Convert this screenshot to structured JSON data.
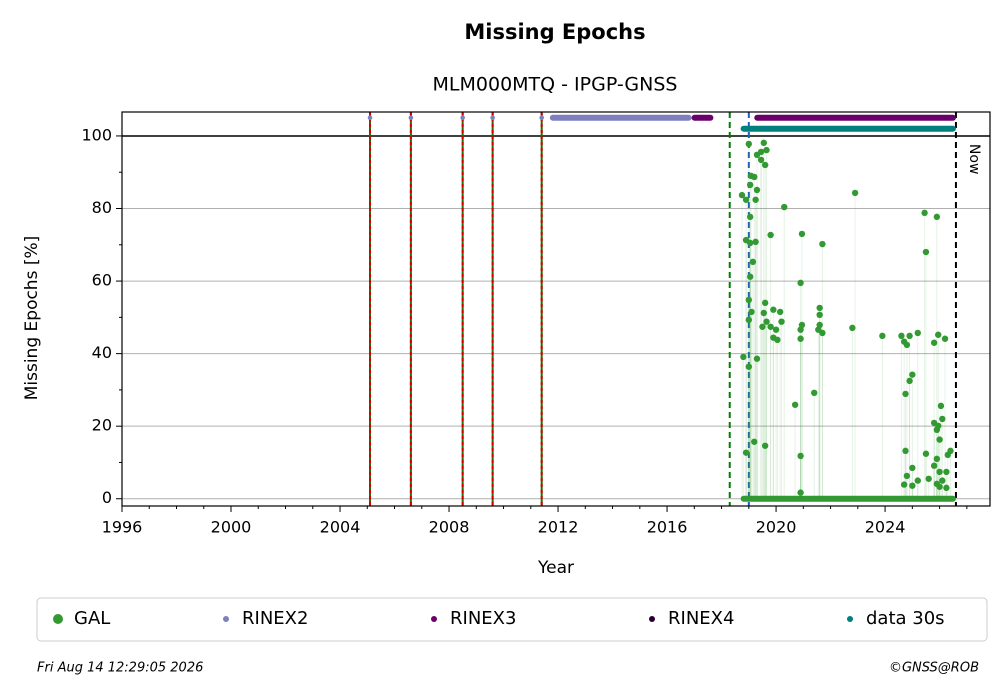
{
  "chart_data": {
    "type": "scatter",
    "title": "Missing Epochs",
    "subtitle": "MLM000MTQ - IPGP-GNSS",
    "x_label": "Year",
    "y_label": "Missing Epochs [%]",
    "xlim": [
      1996,
      2027.85
    ],
    "ylim": [
      -2,
      106.6
    ],
    "xticks": [
      1996,
      2000,
      2004,
      2008,
      2012,
      2016,
      2020,
      2024
    ],
    "xticks_minor": [
      1997,
      1998,
      1999,
      2001,
      2002,
      2003,
      2005,
      2006,
      2007,
      2009,
      2010,
      2011,
      2013,
      2014,
      2015,
      2017,
      2018,
      2019,
      2021,
      2022,
      2023,
      2025,
      2026,
      2027
    ],
    "yticks": [
      0,
      20,
      40,
      60,
      80,
      100
    ],
    "yticks_minor": [
      10,
      30,
      50,
      70,
      90
    ],
    "grid": true,
    "hline": 100,
    "events": [
      2005.1,
      2006.6,
      2008.5,
      2009.6,
      2011.4
    ],
    "lines": [
      {
        "x": 2018.3,
        "color": "#008000"
      },
      {
        "x": 2019.0,
        "color": "#1f5fbf"
      },
      {
        "x": 2026.6,
        "color": "#000000",
        "label": "Now"
      }
    ],
    "series": [
      {
        "name": "GAL",
        "color": "#339933",
        "x": [
          2019.0,
          2018.9,
          2018.75,
          2019.08,
          2019.2,
          2019.05,
          2019.3,
          2019.05,
          2019.25,
          2018.9,
          2019.05,
          2019.25,
          2019.15,
          2019.05,
          2019.0,
          2019.0,
          2019.1,
          2018.8,
          2019.0,
          2019.3,
          2018.9,
          2019.2,
          2019.6,
          2019.3,
          2019.45,
          2019.55,
          2019.65,
          2019.45,
          2019.6,
          2019.8,
          2020.3,
          2019.55,
          2019.6,
          2019.65,
          2019.5,
          2019.8,
          2019.9,
          2020.0,
          2019.9,
          2020.15,
          2020.2,
          2020.05,
          2020.7,
          2020.9,
          2020.95,
          2020.9,
          2020.95,
          2020.9,
          2020.9,
          2020.9,
          2021.4,
          2021.6,
          2021.6,
          2021.6,
          2021.7,
          2021.55,
          2021.7,
          2022.8,
          2022.9,
          2023.9,
          2024.6,
          2024.7,
          2024.8,
          2024.9,
          2025.2,
          2024.7,
          2024.75,
          2024.75,
          2024.8,
          2024.9,
          2025.0,
          2025.0,
          2025.0,
          2025.2,
          2025.45,
          2025.5,
          2025.9,
          2025.5,
          2025.6,
          2025.8,
          2025.95,
          2026.2,
          2025.8,
          2025.9,
          2026.0,
          2025.95,
          2026.05,
          2026.1,
          2025.9,
          2025.8,
          2026.0,
          2026.1,
          2026.25,
          2026.3,
          2026.4,
          2026.0,
          2026.25,
          2025.9
        ],
        "values": [
          97.8,
          82.4,
          83.7,
          89,
          88.7,
          86.5,
          85.1,
          77.7,
          82.4,
          71.3,
          70.5,
          70.8,
          65.3,
          61.2,
          54.8,
          49.3,
          51.5,
          39.1,
          36.4,
          38.6,
          12.7,
          15.7,
          14.6,
          94.8,
          93.4,
          98.1,
          96.1,
          95.6,
          92,
          72.7,
          80.4,
          51.2,
          54,
          48.8,
          47.4,
          47.4,
          52.1,
          46.6,
          44.4,
          51.5,
          48.8,
          43.8,
          25.9,
          59.5,
          73,
          46.6,
          47.9,
          44.1,
          11.8,
          1.7,
          29.2,
          52.6,
          50.7,
          47.9,
          45.7,
          46.6,
          70.2,
          47.1,
          84.3,
          44.9,
          44.9,
          43.3,
          42.4,
          44.9,
          45.7,
          3.9,
          28.9,
          13.2,
          6.3,
          32.5,
          34.2,
          3.6,
          8.5,
          5,
          78.8,
          68,
          77.7,
          12.4,
          5.5,
          43,
          45.2,
          44.1,
          20.9,
          19,
          16.3,
          20.1,
          25.6,
          22,
          11,
          9.1,
          7.4,
          5,
          7.4,
          12.1,
          13.2,
          3.3,
          3,
          4.1
        ],
        "spans": [
          {
            "x": [
              2018.7,
              2026.6
            ],
            "value": 0
          }
        ]
      },
      {
        "name": "RINEX2",
        "color": "#7f7fbf",
        "x": [
          2005.1,
          2006.6,
          2008.5,
          2009.6,
          2011.4
        ],
        "values": [
          105,
          105,
          105,
          105,
          105
        ],
        "spans": [
          {
            "x": [
              2011.7,
              2016.9
            ],
            "value": 105
          }
        ]
      },
      {
        "name": "RINEX3",
        "color": "#6b006b",
        "x": [],
        "values": [],
        "spans": [
          {
            "x": [
              2016.9,
              2017.7
            ],
            "value": 105
          },
          {
            "x": [
              2019.2,
              2026.6
            ],
            "value": 105
          }
        ]
      },
      {
        "name": "RINEX4",
        "color": "#2a0030",
        "x": [],
        "values": [],
        "spans": []
      },
      {
        "name": "data 30s",
        "color": "#007f7f",
        "x": [],
        "values": [],
        "spans": [
          {
            "x": [
              2018.7,
              2026.6
            ],
            "value": 102
          }
        ]
      }
    ]
  },
  "footer": {
    "timestamp": "Fri Aug 14 12:29:05 2026",
    "credit": "©GNSS@ROB"
  }
}
